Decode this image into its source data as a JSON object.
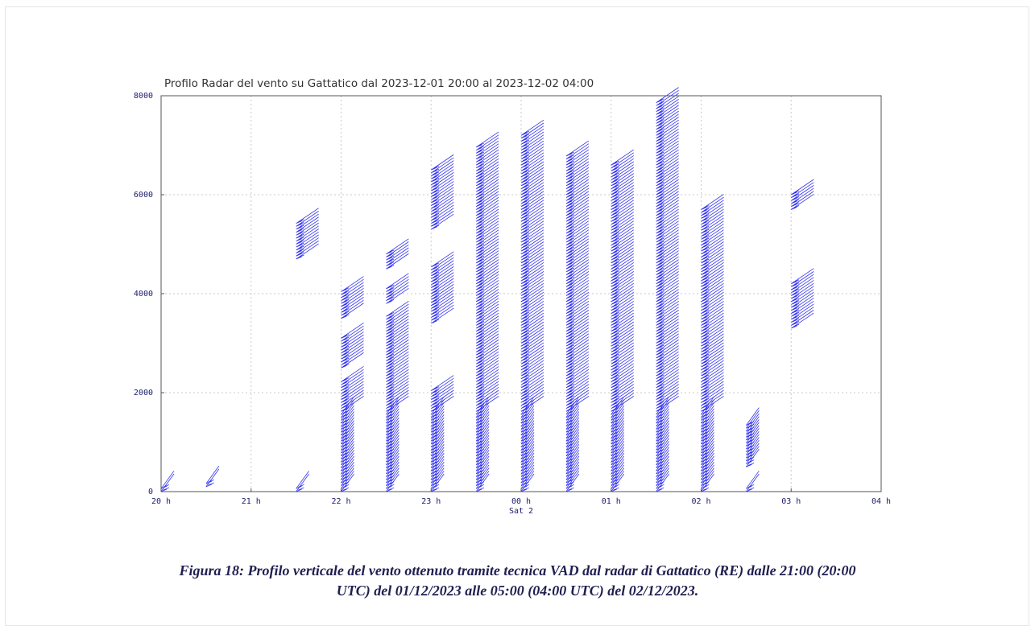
{
  "chart_data": {
    "type": "wind-barb-profile",
    "title": "Profilo Radar del vento su Gattatico dal 2023-12-01 20:00 al 2023-12-02 04:00",
    "xlabel": "",
    "ylabel": "",
    "x_ticks": [
      "20 h",
      "21 h",
      "22 h",
      "23 h",
      "00 h",
      "01 h",
      "02 h",
      "03 h",
      "04 h"
    ],
    "x_sublabel": "Sat 2",
    "y_ticks": [
      "0",
      "2000",
      "4000",
      "6000",
      "8000"
    ],
    "xlim": [
      20,
      28
    ],
    "ylim": [
      0,
      8000
    ],
    "grid": true,
    "barb_color": "#3333ee",
    "profiles": [
      {
        "time": 20.0,
        "segments": [
          [
            0,
            100
          ]
        ]
      },
      {
        "time": 20.5,
        "segments": [
          [
            100,
            200
          ]
        ]
      },
      {
        "time": 21.5,
        "segments": [
          [
            0,
            60
          ],
          [
            4700,
            5450
          ]
        ]
      },
      {
        "time": 22.0,
        "segments": [
          [
            0,
            2250
          ],
          [
            2500,
            3150
          ],
          [
            3500,
            4050
          ]
        ]
      },
      {
        "time": 22.5,
        "segments": [
          [
            0,
            3550
          ],
          [
            3800,
            4100
          ],
          [
            4500,
            4850
          ]
        ]
      },
      {
        "time": 23.0,
        "segments": [
          [
            0,
            2050
          ],
          [
            3400,
            4550
          ],
          [
            5300,
            6500
          ]
        ]
      },
      {
        "time": 23.5,
        "segments": [
          [
            0,
            7000
          ]
        ]
      },
      {
        "time": 24.0,
        "segments": [
          [
            0,
            7200
          ]
        ]
      },
      {
        "time": 24.5,
        "segments": [
          [
            0,
            6800
          ]
        ]
      },
      {
        "time": 25.0,
        "segments": [
          [
            0,
            6650
          ]
        ]
      },
      {
        "time": 25.5,
        "segments": [
          [
            0,
            7900
          ]
        ]
      },
      {
        "time": 26.0,
        "segments": [
          [
            0,
            5700
          ]
        ]
      },
      {
        "time": 26.5,
        "segments": [
          [
            0,
            60
          ],
          [
            500,
            1350
          ]
        ]
      },
      {
        "time": 27.0,
        "segments": [
          [
            3300,
            4200
          ],
          [
            5700,
            6050
          ]
        ]
      }
    ]
  },
  "caption": {
    "line1": "Figura 18: Profilo verticale del vento ottenuto tramite tecnica VAD dal radar di Gattatico (RE) dalle 21:00 (20:00",
    "line2": "UTC) del 01/12/2023 alle 05:00 (04:00 UTC) del 02/12/2023."
  }
}
